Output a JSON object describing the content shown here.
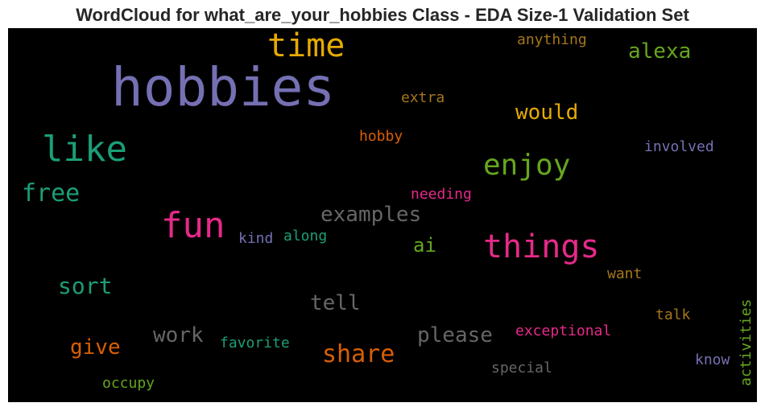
{
  "chart_data": {
    "type": "wordcloud",
    "title": "WordCloud for what_are_your_hobbies Class - EDA Size-1 Validation Set",
    "background": "#000000",
    "words": [
      {
        "text": "hobbies",
        "size": 66,
        "color": "#7570b3"
      },
      {
        "text": "time",
        "size": 40,
        "color": "#e6ab02"
      },
      {
        "text": "like",
        "size": 44,
        "color": "#1b9e77"
      },
      {
        "text": "fun",
        "size": 44,
        "color": "#e7298a"
      },
      {
        "text": "things",
        "size": 40,
        "color": "#e7298a"
      },
      {
        "text": "enjoy",
        "size": 36,
        "color": "#66a61e"
      },
      {
        "text": "alexa",
        "size": 26,
        "color": "#66a61e"
      },
      {
        "text": "would",
        "size": 26,
        "color": "#e6ab02"
      },
      {
        "text": "free",
        "size": 30,
        "color": "#1b9e77"
      },
      {
        "text": "examples",
        "size": 26,
        "color": "#666666"
      },
      {
        "text": "sort",
        "size": 28,
        "color": "#1b9e77"
      },
      {
        "text": "share",
        "size": 30,
        "color": "#d95f02"
      },
      {
        "text": "please",
        "size": 26,
        "color": "#666666"
      },
      {
        "text": "tell",
        "size": 26,
        "color": "#666666"
      },
      {
        "text": "work",
        "size": 26,
        "color": "#666666"
      },
      {
        "text": "give",
        "size": 26,
        "color": "#d95f02"
      },
      {
        "text": "ai",
        "size": 24,
        "color": "#66a61e"
      },
      {
        "text": "anything",
        "size": 18,
        "color": "#a6761d"
      },
      {
        "text": "extra",
        "size": 18,
        "color": "#a6761d"
      },
      {
        "text": "hobby",
        "size": 18,
        "color": "#d95f02"
      },
      {
        "text": "involved",
        "size": 18,
        "color": "#7570b3"
      },
      {
        "text": "needing",
        "size": 18,
        "color": "#e7298a"
      },
      {
        "text": "kind",
        "size": 18,
        "color": "#7570b3"
      },
      {
        "text": "along",
        "size": 18,
        "color": "#1b9e77"
      },
      {
        "text": "want",
        "size": 18,
        "color": "#a6761d"
      },
      {
        "text": "talk",
        "size": 18,
        "color": "#a6761d"
      },
      {
        "text": "exceptional",
        "size": 18,
        "color": "#e7298a"
      },
      {
        "text": "favorite",
        "size": 18,
        "color": "#1b9e77"
      },
      {
        "text": "special",
        "size": 18,
        "color": "#666666"
      },
      {
        "text": "occupy",
        "size": 18,
        "color": "#66a61e"
      },
      {
        "text": "know",
        "size": 18,
        "color": "#7570b3"
      },
      {
        "text": "activities",
        "size": 18,
        "color": "#66a61e"
      }
    ]
  }
}
